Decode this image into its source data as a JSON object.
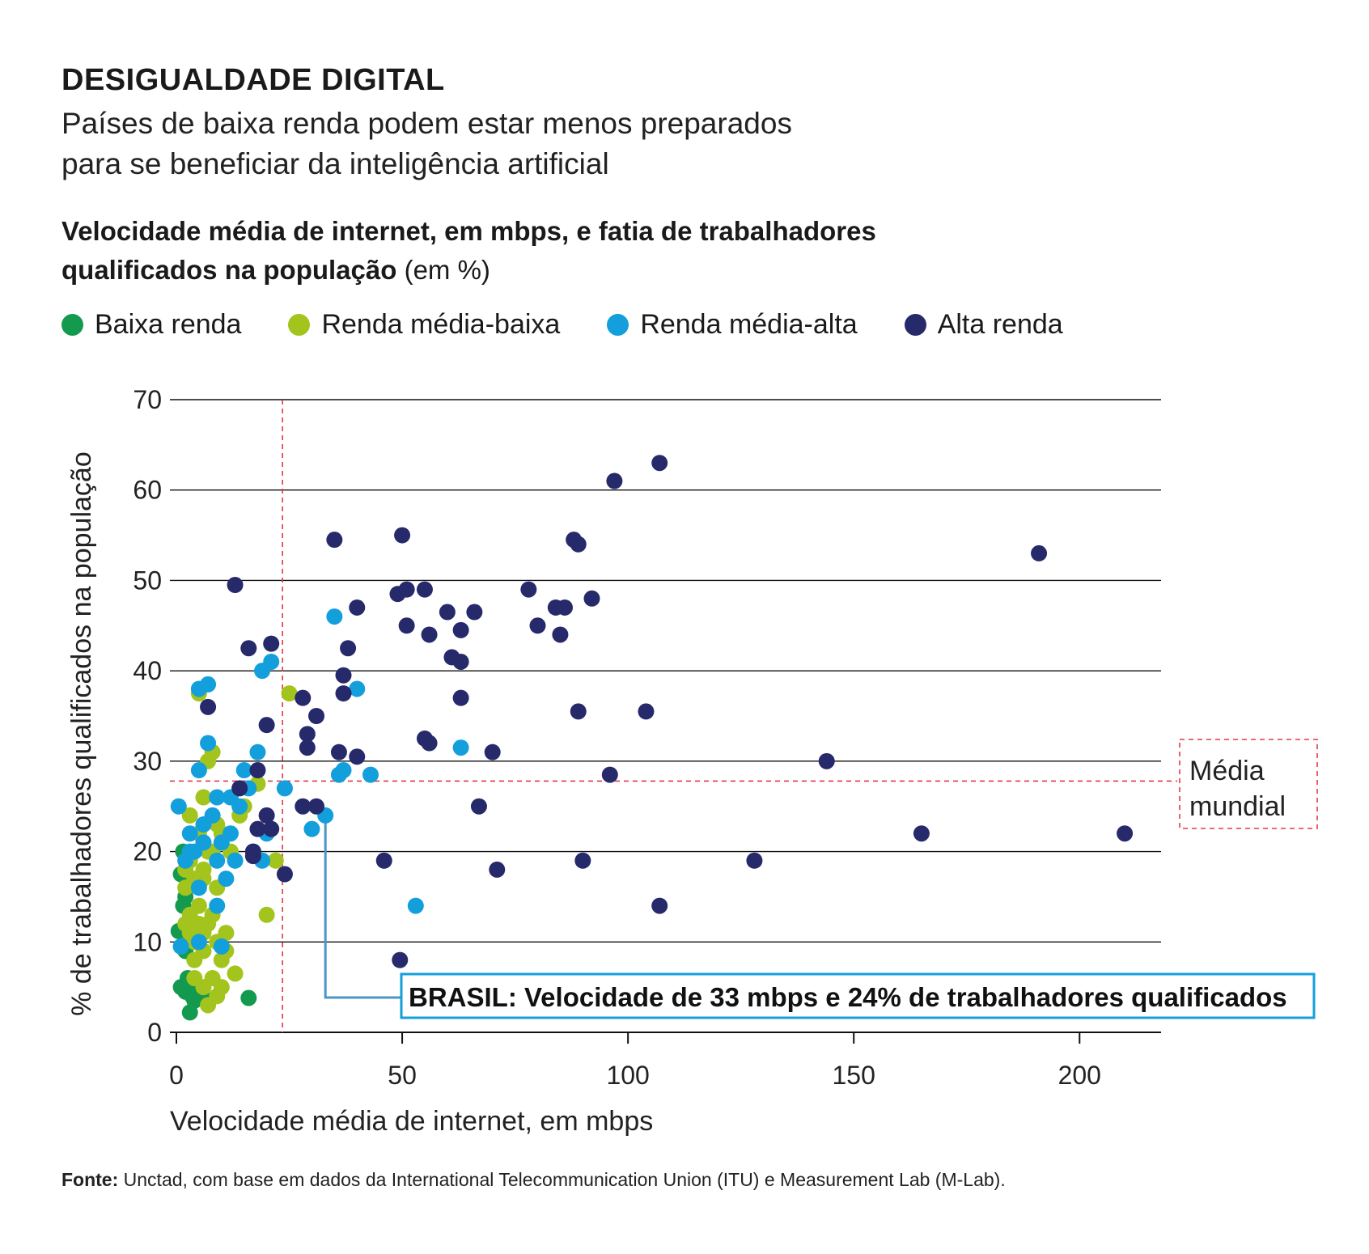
{
  "header": {
    "title": "DESIGUALDADE DIGITAL",
    "subtitle_line1": "Países de baixa renda podem estar menos preparados",
    "subtitle_line2": "para se beneficiar da inteligência artificial"
  },
  "chart_heading": {
    "bold_line1": "Velocidade média de internet, em mbps, e fatia de trabalhadores",
    "bold_line2": "qualificados na população",
    "suffix": "(em %)"
  },
  "legend": [
    {
      "label": "Baixa renda",
      "color": "#149a4e"
    },
    {
      "label": "Renda média-baixa",
      "color": "#a3c41c"
    },
    {
      "label": "Renda média-alta",
      "color": "#139fdc"
    },
    {
      "label": "Alta renda",
      "color": "#262a6b"
    }
  ],
  "source": {
    "label": "Fonte:",
    "text": "Unctad, com base em dados da International Telecommunication Union (ITU) e Measurement Lab (M-Lab)."
  },
  "chart_data": {
    "type": "scatter",
    "xlabel": "Velocidade média de internet, em mbps",
    "ylabel": "% de trabalhadores qualificados na população",
    "xlim": [
      0,
      215
    ],
    "ylim": [
      0,
      70
    ],
    "xticks": [
      0,
      50,
      100,
      150,
      200
    ],
    "yticks": [
      0,
      10,
      20,
      30,
      40,
      50,
      60,
      70
    ],
    "grid": "horizontal",
    "reference_lines": {
      "world_avg_speed": 23.5,
      "world_avg_workers": 27.8,
      "label_line1": "Média",
      "label_line2": "mundial"
    },
    "highlight": {
      "label": "BRASIL: Velocidade de 33 mbps e 24% de trabalhadores qualificados",
      "x": 33,
      "y": 24
    },
    "series": [
      {
        "name": "Baixa renda",
        "color": "#149a4e",
        "points": [
          [
            0.5,
            11.2
          ],
          [
            1,
            17.5
          ],
          [
            1.5,
            14
          ],
          [
            2,
            15
          ],
          [
            1,
            5
          ],
          [
            2,
            4.5
          ],
          [
            3,
            2.2
          ],
          [
            2.5,
            6
          ],
          [
            3.5,
            4
          ],
          [
            4,
            3.5
          ],
          [
            5,
            5
          ],
          [
            6,
            3.8
          ],
          [
            2,
            9
          ],
          [
            3,
            10
          ],
          [
            1.5,
            20
          ],
          [
            16,
            3.8
          ]
        ]
      },
      {
        "name": "Renda média-baixa",
        "color": "#a3c41c",
        "points": [
          [
            5,
            37.5
          ],
          [
            7,
            30
          ],
          [
            8,
            31
          ],
          [
            6,
            26
          ],
          [
            3,
            24
          ],
          [
            5,
            22
          ],
          [
            9,
            23
          ],
          [
            8,
            20
          ],
          [
            6,
            18
          ],
          [
            4,
            17
          ],
          [
            2,
            18
          ],
          [
            6,
            17
          ],
          [
            9,
            16
          ],
          [
            3,
            13
          ],
          [
            5,
            12
          ],
          [
            6,
            11
          ],
          [
            7,
            12
          ],
          [
            8,
            13
          ],
          [
            4,
            10
          ],
          [
            3,
            11
          ],
          [
            11,
            11
          ],
          [
            9,
            10
          ],
          [
            2,
            12
          ],
          [
            11,
            9
          ],
          [
            4,
            8
          ],
          [
            8,
            6
          ],
          [
            6,
            5
          ],
          [
            10,
            5
          ],
          [
            13,
            6.5
          ],
          [
            9,
            4
          ],
          [
            7,
            3
          ],
          [
            4,
            6
          ],
          [
            20,
            13
          ],
          [
            18,
            27.5
          ],
          [
            25,
            37.5
          ],
          [
            22,
            19
          ],
          [
            15,
            25
          ],
          [
            10,
            22
          ],
          [
            7,
            20
          ],
          [
            3,
            19
          ],
          [
            12,
            20
          ],
          [
            14,
            24
          ],
          [
            5,
            14
          ],
          [
            2,
            16
          ],
          [
            10,
            8
          ],
          [
            6,
            9
          ]
        ]
      },
      {
        "name": "Renda média-alta",
        "color": "#139fdc",
        "points": [
          [
            5,
            38
          ],
          [
            7,
            38.5
          ],
          [
            7,
            32
          ],
          [
            5,
            29
          ],
          [
            0.5,
            25
          ],
          [
            3,
            22
          ],
          [
            6,
            23
          ],
          [
            9,
            26
          ],
          [
            12,
            26
          ],
          [
            8,
            24
          ],
          [
            4,
            20
          ],
          [
            2,
            19
          ],
          [
            9,
            19
          ],
          [
            11,
            17
          ],
          [
            13,
            19
          ],
          [
            5,
            16
          ],
          [
            15,
            29
          ],
          [
            18,
            31
          ],
          [
            19,
            40
          ],
          [
            21,
            41
          ],
          [
            24,
            27
          ],
          [
            20,
            22
          ],
          [
            19,
            19
          ],
          [
            17,
            20
          ],
          [
            12,
            22
          ],
          [
            10,
            21
          ],
          [
            14,
            25
          ],
          [
            16,
            27
          ],
          [
            6,
            21
          ],
          [
            3,
            20
          ],
          [
            9,
            14
          ],
          [
            5,
            10
          ],
          [
            10,
            9.5
          ],
          [
            1,
            9.5
          ],
          [
            35,
            46
          ],
          [
            40,
            38
          ],
          [
            37,
            29
          ],
          [
            36,
            28.5
          ],
          [
            43,
            28.5
          ],
          [
            30,
            22.5
          ],
          [
            33,
            24
          ],
          [
            53,
            14
          ],
          [
            63,
            31.5
          ]
        ]
      },
      {
        "name": "Alta renda",
        "color": "#262a6b",
        "points": [
          [
            13,
            49.5
          ],
          [
            16,
            42.5
          ],
          [
            21,
            43
          ],
          [
            20,
            34
          ],
          [
            7,
            36
          ],
          [
            14,
            27
          ],
          [
            18,
            29
          ],
          [
            17,
            20
          ],
          [
            18,
            22.5
          ],
          [
            21,
            22.5
          ],
          [
            17,
            19.5
          ],
          [
            20,
            24
          ],
          [
            24,
            17.5
          ],
          [
            28,
            37
          ],
          [
            29,
            33
          ],
          [
            29,
            31.5
          ],
          [
            31,
            35
          ],
          [
            28,
            25
          ],
          [
            31,
            25
          ],
          [
            35,
            54.5
          ],
          [
            40,
            47
          ],
          [
            38,
            42.5
          ],
          [
            37,
            39.5
          ],
          [
            37,
            37.5
          ],
          [
            36,
            31
          ],
          [
            40,
            30.5
          ],
          [
            46,
            19
          ],
          [
            50,
            55
          ],
          [
            51,
            49
          ],
          [
            49,
            48.5
          ],
          [
            51,
            45
          ],
          [
            55,
            32.5
          ],
          [
            56,
            32
          ],
          [
            55,
            49
          ],
          [
            56,
            44
          ],
          [
            60,
            46.5
          ],
          [
            61,
            41.5
          ],
          [
            63,
            41
          ],
          [
            63,
            44.5
          ],
          [
            63,
            37
          ],
          [
            66,
            46.5
          ],
          [
            67,
            25
          ],
          [
            70,
            31
          ],
          [
            71,
            18
          ],
          [
            78,
            49
          ],
          [
            80,
            45
          ],
          [
            84,
            47
          ],
          [
            85,
            44
          ],
          [
            86,
            47
          ],
          [
            88,
            54.5
          ],
          [
            89,
            54
          ],
          [
            89,
            35.5
          ],
          [
            90,
            19
          ],
          [
            92,
            48
          ],
          [
            96,
            28.5
          ],
          [
            97,
            61
          ],
          [
            104,
            35.5
          ],
          [
            107,
            14
          ],
          [
            107,
            63
          ],
          [
            128,
            19
          ],
          [
            144,
            30
          ],
          [
            165,
            22
          ],
          [
            191,
            53
          ],
          [
            210,
            22
          ],
          [
            49.5,
            8
          ]
        ]
      }
    ]
  }
}
